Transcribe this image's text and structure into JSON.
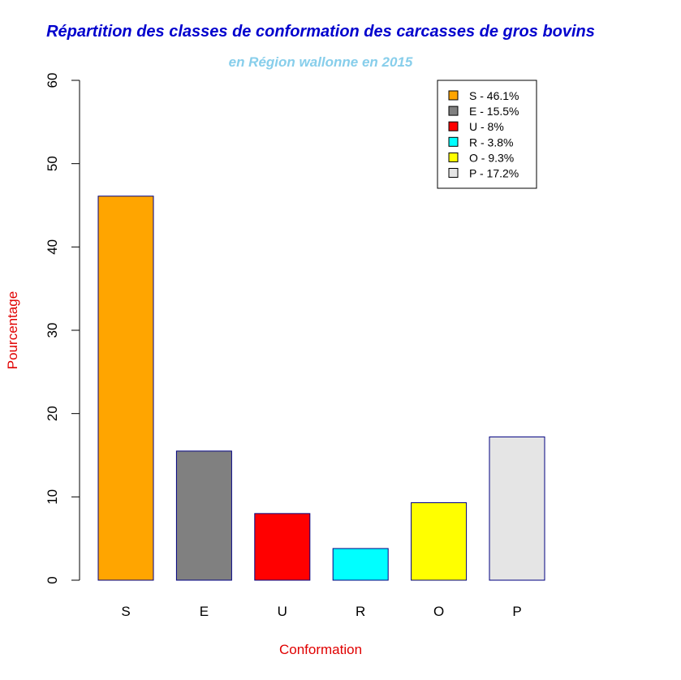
{
  "chart_data": {
    "type": "bar",
    "title": "Répartition des classes de conformation des carcasses de gros bovins",
    "subtitle": "en Région wallonne en 2015",
    "xlabel": "Conformation",
    "ylabel": "Pourcentage",
    "categories": [
      "S",
      "E",
      "U",
      "R",
      "O",
      "P"
    ],
    "values": [
      46.1,
      15.5,
      8,
      3.8,
      9.3,
      17.2
    ],
    "ylim": [
      0,
      60
    ],
    "yticks": [
      "0",
      "10",
      "20",
      "30",
      "40",
      "50",
      "60"
    ],
    "colors": [
      "#FFA500",
      "#808080",
      "#FF0000",
      "#00FFFF",
      "#FFFF00",
      "#E5E5E5"
    ],
    "bar_border_color": "#000080",
    "title_color": "#0000CD",
    "subtitle_color": "#87CEEB",
    "axis_label_color": "#E00000",
    "legend": {
      "position": "top-right",
      "entries": [
        "S - 46.1%",
        "E - 15.5%",
        "U - 8%",
        "R - 3.8%",
        "O - 9.3%",
        "P - 17.2%"
      ]
    },
    "grid": false
  }
}
